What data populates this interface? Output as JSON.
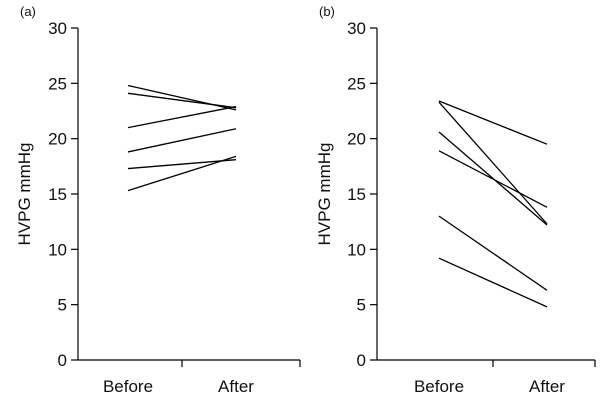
{
  "chart_data": [
    {
      "type": "line",
      "panel_label": "(a)",
      "ylabel": "HVPG mmHg",
      "categories": [
        "Before",
        "After"
      ],
      "ylim": [
        0,
        30
      ],
      "yticks": [
        0,
        5,
        10,
        15,
        20,
        25,
        30
      ],
      "grid": false,
      "series": [
        {
          "values": [
            24.8,
            22.6
          ]
        },
        {
          "values": [
            24.1,
            22.8
          ]
        },
        {
          "values": [
            21.0,
            22.9
          ]
        },
        {
          "values": [
            18.8,
            20.9
          ]
        },
        {
          "values": [
            17.3,
            18.1
          ]
        },
        {
          "values": [
            15.3,
            18.4
          ]
        }
      ]
    },
    {
      "type": "line",
      "panel_label": "(b)",
      "ylabel": "HVPG mmHg",
      "categories": [
        "Before",
        "After"
      ],
      "ylim": [
        0,
        30
      ],
      "yticks": [
        0,
        5,
        10,
        15,
        20,
        25,
        30
      ],
      "grid": false,
      "series": [
        {
          "values": [
            23.4,
            19.5
          ]
        },
        {
          "values": [
            23.3,
            12.3
          ]
        },
        {
          "values": [
            20.6,
            12.2
          ]
        },
        {
          "values": [
            18.9,
            13.8
          ]
        },
        {
          "values": [
            13.0,
            6.3
          ]
        },
        {
          "values": [
            9.2,
            4.8
          ]
        }
      ]
    }
  ]
}
